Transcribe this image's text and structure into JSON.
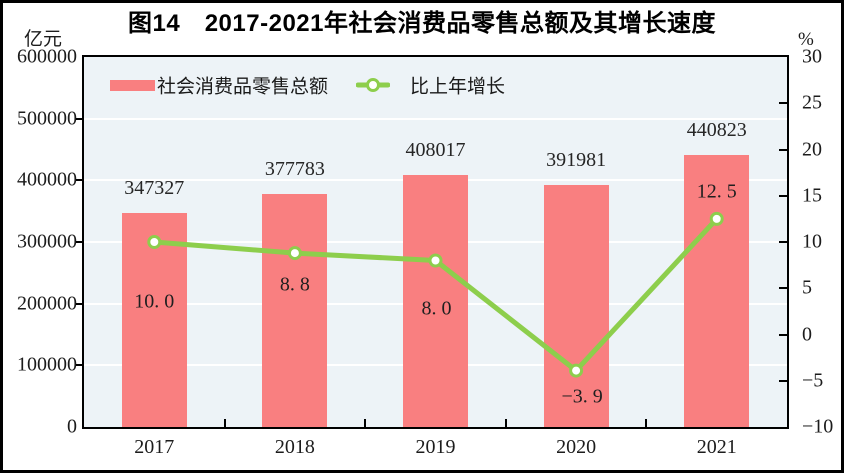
{
  "figure": {
    "title": "图14　2017-2021年社会消费品零售总额及其增长速度",
    "left_axis_unit": "亿元",
    "right_axis_unit": "%"
  },
  "legend": {
    "bar_label": "社会消费品零售总额",
    "line_label": "比上年增长"
  },
  "colors": {
    "bar": "#f97f80",
    "line": "#8dce4c",
    "marker_fill": "#ffffff",
    "plot_background": "#edf3f7",
    "gridline": "#ffffff",
    "frame": "#000000",
    "text": "#1c1c1c"
  },
  "chart_data": {
    "type": "bar",
    "subtype": "bar+line combo, dual axis",
    "title": "图14　2017-2021年社会消费品零售总额及其增长速度",
    "categories": [
      "2017",
      "2018",
      "2019",
      "2020",
      "2021"
    ],
    "series": [
      {
        "name": "社会消费品零售总额",
        "type": "bar",
        "axis": "left",
        "values": [
          347327,
          377783,
          408017,
          391981,
          440823
        ],
        "value_labels": [
          "347327",
          "377783",
          "408017",
          "391981",
          "440823"
        ]
      },
      {
        "name": "比上年增长",
        "type": "line",
        "axis": "right",
        "values": [
          10.0,
          8.8,
          8.0,
          -3.9,
          12.5
        ],
        "value_labels": [
          "10. 0",
          "8. 8",
          "8. 0",
          "−3. 9",
          "12. 5"
        ]
      }
    ],
    "y_left": {
      "label": "亿元",
      "min": 0,
      "max": 600000,
      "tick_step": 100000,
      "tick_labels": [
        "600000",
        "500000",
        "400000",
        "300000",
        "200000",
        "100000",
        "0"
      ]
    },
    "y_right": {
      "label": "%",
      "min": -10,
      "max": 30,
      "tick_step": 5,
      "tick_labels": [
        "30",
        "25",
        "20",
        "15",
        "10",
        "5",
        "0",
        "−5",
        "−10"
      ]
    },
    "grid": "horizontal white gridlines at left-axis tick values",
    "legend_position": "top-left inside plot area"
  }
}
